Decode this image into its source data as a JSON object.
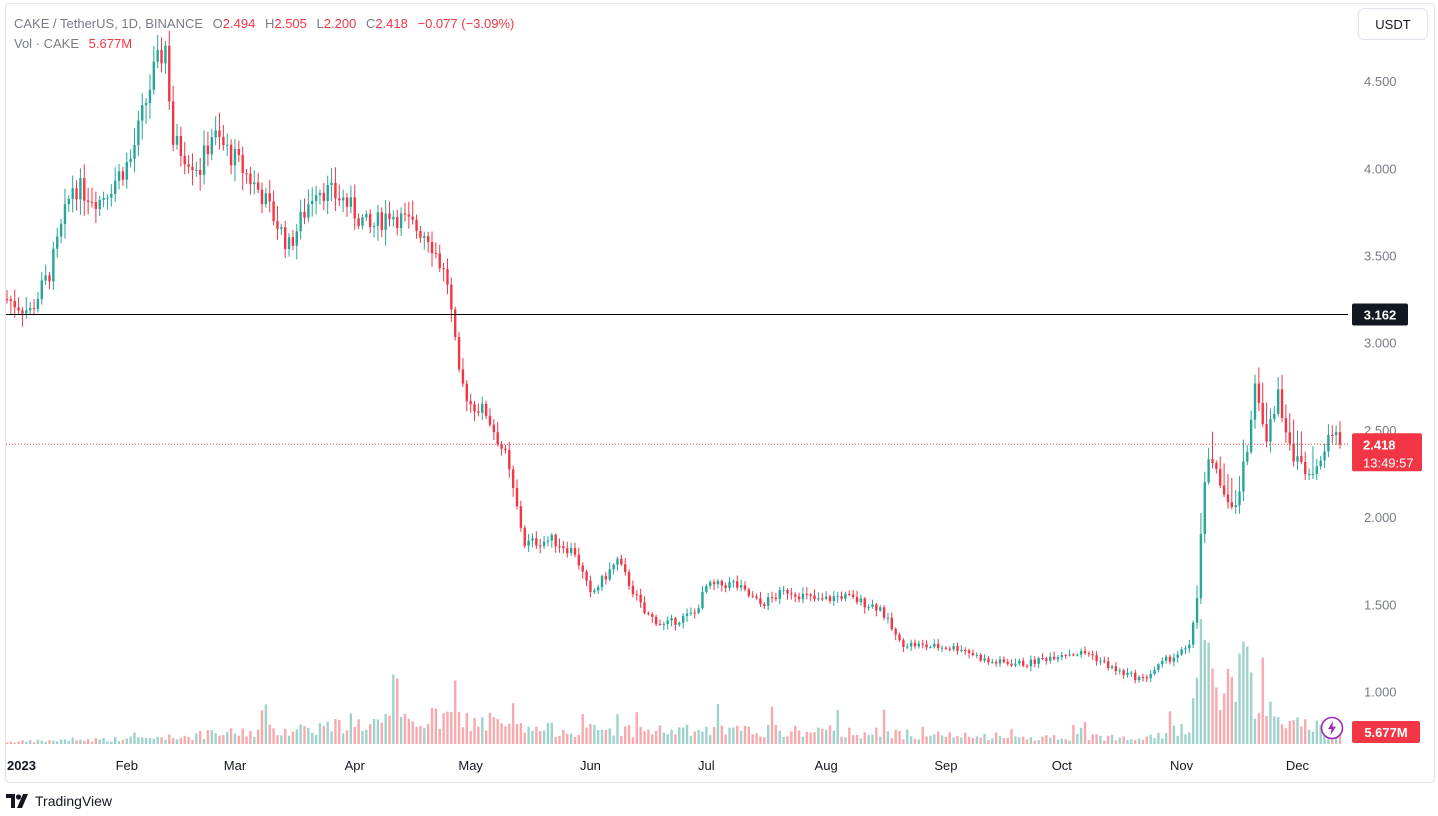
{
  "header": {
    "symbol": "CAKE / TetherUS, 1D, BINANCE",
    "open_label": "O",
    "open": "2.494",
    "high_label": "H",
    "high": "2.505",
    "low_label": "L",
    "low": "2.200",
    "close_label": "C",
    "close": "2.418",
    "change": "−0.077 (−3.09%)",
    "volume_label": "Vol · CAKE",
    "volume": "5.677M"
  },
  "currency_button": "USDT",
  "branding": "TradingView",
  "colors": {
    "up": "#26a69a",
    "down": "#f23645",
    "up_volume": "#9ed3cc",
    "down_volume": "#f7a9ae",
    "price_line": "#000000",
    "accent_purple": "#9c27b0"
  },
  "icons": {
    "logo": "tradingview-logo-icon",
    "replay": "lightning-icon"
  },
  "chart_data": {
    "type": "candlestick",
    "y_axis_side": "right",
    "ylim": [
      0.7,
      4.85
    ],
    "y_ticks": [
      "1.000",
      "1.500",
      "2.000",
      "2.500",
      "3.000",
      "3.500",
      "4.000",
      "4.500"
    ],
    "x_ticks": [
      "2023",
      "Feb",
      "Mar",
      "Apr",
      "May",
      "Jun",
      "Jul",
      "Aug",
      "Sep",
      "Oct",
      "Nov",
      "Dec"
    ],
    "horizontal_line": {
      "value": 3.162,
      "label": "3.162"
    },
    "last_price": {
      "value": 2.418,
      "label": "2.418",
      "countdown": "13:49:57"
    },
    "last_volume_label": "5.677M",
    "close_anchors": [
      [
        "2023-01-01",
        3.25
      ],
      [
        "2023-01-07",
        3.18
      ],
      [
        "2023-01-12",
        3.4
      ],
      [
        "2023-01-18",
        3.9
      ],
      [
        "2023-01-25",
        3.82
      ],
      [
        "2023-02-02",
        4.05
      ],
      [
        "2023-02-08",
        4.55
      ],
      [
        "2023-02-11",
        4.7
      ],
      [
        "2023-02-13",
        4.15
      ],
      [
        "2023-02-20",
        4.0
      ],
      [
        "2023-02-23",
        4.2
      ],
      [
        "2023-03-01",
        4.05
      ],
      [
        "2023-03-08",
        3.85
      ],
      [
        "2023-03-15",
        3.55
      ],
      [
        "2023-03-22",
        3.9
      ],
      [
        "2023-03-29",
        3.82
      ],
      [
        "2023-04-05",
        3.65
      ],
      [
        "2023-04-10",
        3.75
      ],
      [
        "2023-04-15",
        3.68
      ],
      [
        "2023-04-20",
        3.62
      ],
      [
        "2023-04-25",
        3.35
      ],
      [
        "2023-04-28",
        2.8
      ],
      [
        "2023-05-01",
        2.65
      ],
      [
        "2023-05-05",
        2.6
      ],
      [
        "2023-05-10",
        2.35
      ],
      [
        "2023-05-15",
        1.85
      ],
      [
        "2023-05-22",
        1.87
      ],
      [
        "2023-05-28",
        1.8
      ],
      [
        "2023-06-01",
        1.55
      ],
      [
        "2023-06-08",
        1.75
      ],
      [
        "2023-06-15",
        1.45
      ],
      [
        "2023-06-20",
        1.38
      ],
      [
        "2023-06-28",
        1.45
      ],
      [
        "2023-07-01",
        1.6
      ],
      [
        "2023-07-08",
        1.62
      ],
      [
        "2023-07-15",
        1.5
      ],
      [
        "2023-07-22",
        1.58
      ],
      [
        "2023-07-30",
        1.52
      ],
      [
        "2023-08-05",
        1.55
      ],
      [
        "2023-08-15",
        1.48
      ],
      [
        "2023-08-20",
        1.28
      ],
      [
        "2023-08-27",
        1.26
      ],
      [
        "2023-09-05",
        1.25
      ],
      [
        "2023-09-12",
        1.17
      ],
      [
        "2023-09-22",
        1.16
      ],
      [
        "2023-10-01",
        1.22
      ],
      [
        "2023-10-08",
        1.22
      ],
      [
        "2023-10-15",
        1.12
      ],
      [
        "2023-10-22",
        1.07
      ],
      [
        "2023-10-28",
        1.18
      ],
      [
        "2023-11-03",
        1.25
      ],
      [
        "2023-11-05",
        1.55
      ],
      [
        "2023-11-07",
        2.2
      ],
      [
        "2023-11-08",
        2.35
      ],
      [
        "2023-11-12",
        2.15
      ],
      [
        "2023-11-15",
        2.05
      ],
      [
        "2023-11-18",
        2.4
      ],
      [
        "2023-11-20",
        2.75
      ],
      [
        "2023-11-23",
        2.45
      ],
      [
        "2023-11-26",
        2.7
      ],
      [
        "2023-11-30",
        2.35
      ],
      [
        "2023-12-04",
        2.25
      ],
      [
        "2023-12-08",
        2.4
      ],
      [
        "2023-12-11",
        2.5
      ],
      [
        "2023-12-12",
        2.418
      ]
    ],
    "volume_anchors": [
      [
        "2023-01-01",
        0.04
      ],
      [
        "2023-02-10",
        0.12
      ],
      [
        "2023-04-26",
        0.5
      ],
      [
        "2023-05-15",
        0.28
      ],
      [
        "2023-06-28",
        0.25
      ],
      [
        "2023-08-05",
        0.24
      ],
      [
        "2023-09-15",
        0.12
      ],
      [
        "2023-10-20",
        0.14
      ],
      [
        "2023-11-03",
        0.3
      ],
      [
        "2023-11-05",
        2.2
      ],
      [
        "2023-11-07",
        2.0
      ],
      [
        "2023-11-10",
        0.9
      ],
      [
        "2023-11-18",
        1.4
      ],
      [
        "2023-11-20",
        0.7
      ],
      [
        "2023-12-01",
        0.4
      ],
      [
        "2023-12-12",
        0.2
      ]
    ]
  }
}
